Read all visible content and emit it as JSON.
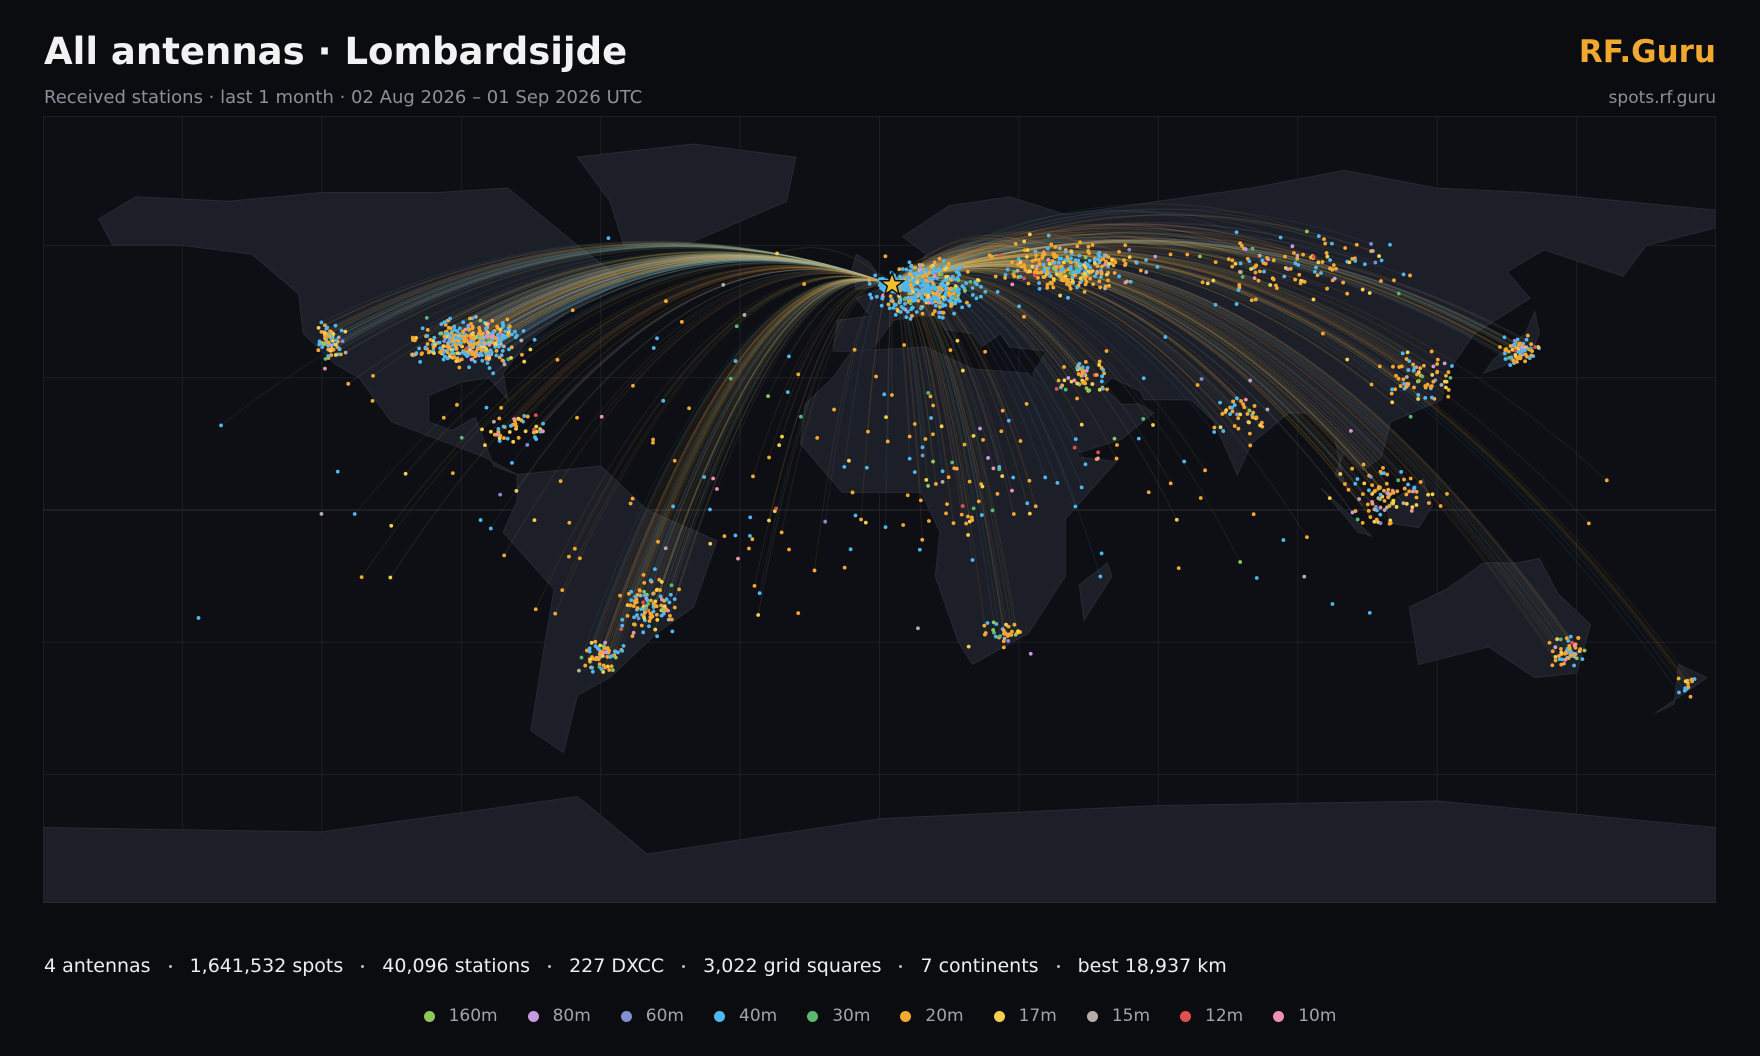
{
  "header": {
    "title": "All antennas · Lombardsijde",
    "subtitle": "Received stations · last 1 month · 02 Aug 2026 – 01 Sep 2026 UTC",
    "brand": "RF.Guru",
    "url": "spots.rf.guru"
  },
  "stats": [
    "4 antennas",
    "1,641,532 spots",
    "40,096 stations",
    "227 DXCC",
    "3,022 grid squares",
    "7 continents",
    "best 18,937 km"
  ],
  "legend": [
    {
      "label": "160m",
      "color": "#8dc85a"
    },
    {
      "label": "80m",
      "color": "#c89be0"
    },
    {
      "label": "60m",
      "color": "#7f8fd0"
    },
    {
      "label": "40m",
      "color": "#4fb8f0"
    },
    {
      "label": "30m",
      "color": "#5ab870"
    },
    {
      "label": "20m",
      "color": "#f5a832"
    },
    {
      "label": "17m",
      "color": "#f5d050"
    },
    {
      "label": "15m",
      "color": "#b8aca8"
    },
    {
      "label": "12m",
      "color": "#e05050"
    },
    {
      "label": "10m",
      "color": "#f090b0"
    }
  ]
}
